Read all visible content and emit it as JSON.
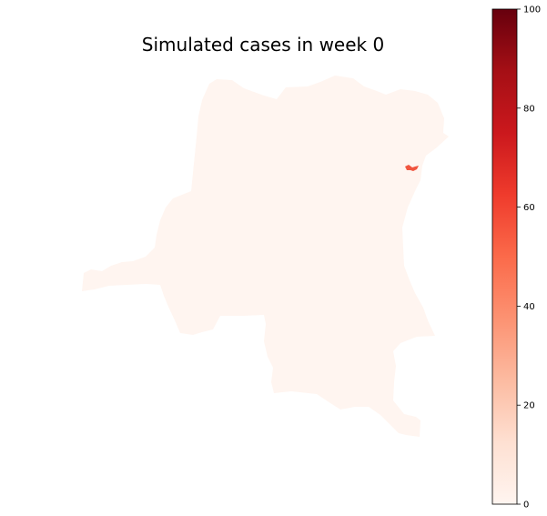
{
  "figure": {
    "title": "Simulated cases in week 0"
  },
  "map": {
    "region_fill": "#fff5f0",
    "highlight_fill": "#f0553f",
    "highlighted_value_approx": 65
  },
  "colorbar": {
    "colormap": "Reds",
    "min": 0,
    "max": 100,
    "ticks": [
      {
        "value": 0,
        "label": "0"
      },
      {
        "value": 20,
        "label": "20"
      },
      {
        "value": 40,
        "label": "40"
      },
      {
        "value": 60,
        "label": "60"
      },
      {
        "value": 80,
        "label": "80"
      },
      {
        "value": 100,
        "label": "100"
      }
    ],
    "colors": [
      "#fff5f0",
      "#fee0d2",
      "#fcbba1",
      "#fc9272",
      "#fb6a4a",
      "#ef3b2c",
      "#cb181d",
      "#a50f15",
      "#67000d"
    ]
  }
}
